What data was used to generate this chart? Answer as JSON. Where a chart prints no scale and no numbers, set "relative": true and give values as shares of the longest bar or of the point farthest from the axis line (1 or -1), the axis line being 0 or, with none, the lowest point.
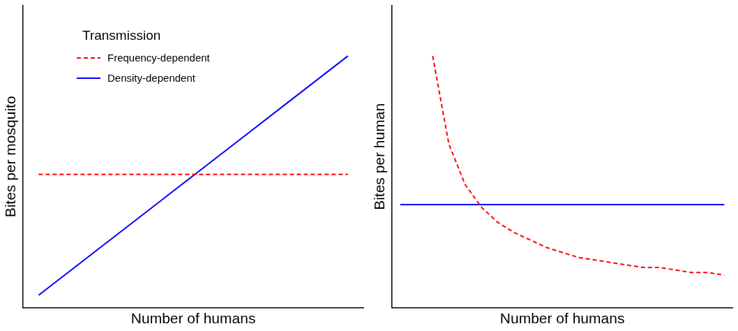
{
  "chart_data": [
    {
      "type": "line",
      "relative": true,
      "xlabel": "Number of humans",
      "ylabel": "Bites per mosquito",
      "legend_title": "Transmission",
      "legend": "top left",
      "grid": false,
      "marker": "none",
      "categories": [
        null,
        null,
        null,
        null,
        null,
        null,
        null,
        null,
        null,
        null,
        null
      ],
      "series": [
        {
          "name": "Frequency-dependent",
          "color": "#ff0000",
          "line_style": "dashed",
          "values": [
            0.53,
            0.53,
            0.53,
            0.53,
            0.53,
            0.53,
            0.53,
            0.53,
            0.53,
            0.53,
            0.53
          ]
        },
        {
          "name": "Density-dependent",
          "color": "#0000ff",
          "line_style": "solid",
          "values": [
            0.05,
            0.145,
            0.24,
            0.335,
            0.43,
            0.525,
            0.62,
            0.715,
            0.81,
            0.905,
            1
          ]
        }
      ]
    },
    {
      "type": "line",
      "relative": true,
      "xlabel": "Number of humans",
      "ylabel": "Bites per human",
      "legend": false,
      "grid": false,
      "marker": "none",
      "categories": [
        null,
        null,
        null,
        null,
        null,
        null,
        null,
        null,
        null,
        null,
        null,
        null,
        null,
        null,
        null,
        null,
        null,
        null,
        null,
        null,
        null
      ],
      "series": [
        {
          "color": "#ff0000",
          "line_style": "dashed",
          "values": [
            null,
            null,
            1,
            0.65,
            0.49,
            0.4,
            0.34,
            0.3,
            0.27,
            0.24,
            0.22,
            0.2,
            0.19,
            0.18,
            0.17,
            0.16,
            0.16,
            0.15,
            0.14,
            0.14,
            0.13
          ]
        },
        {
          "color": "#0000ff",
          "line_style": "solid",
          "values": [
            0.41,
            0.41,
            0.41,
            0.41,
            0.41,
            0.41,
            0.41,
            0.41,
            0.41,
            0.41,
            0.41,
            0.41,
            0.41,
            0.41,
            0.41,
            0.41,
            0.41,
            0.41,
            0.41,
            0.41,
            0.41
          ]
        }
      ]
    }
  ]
}
